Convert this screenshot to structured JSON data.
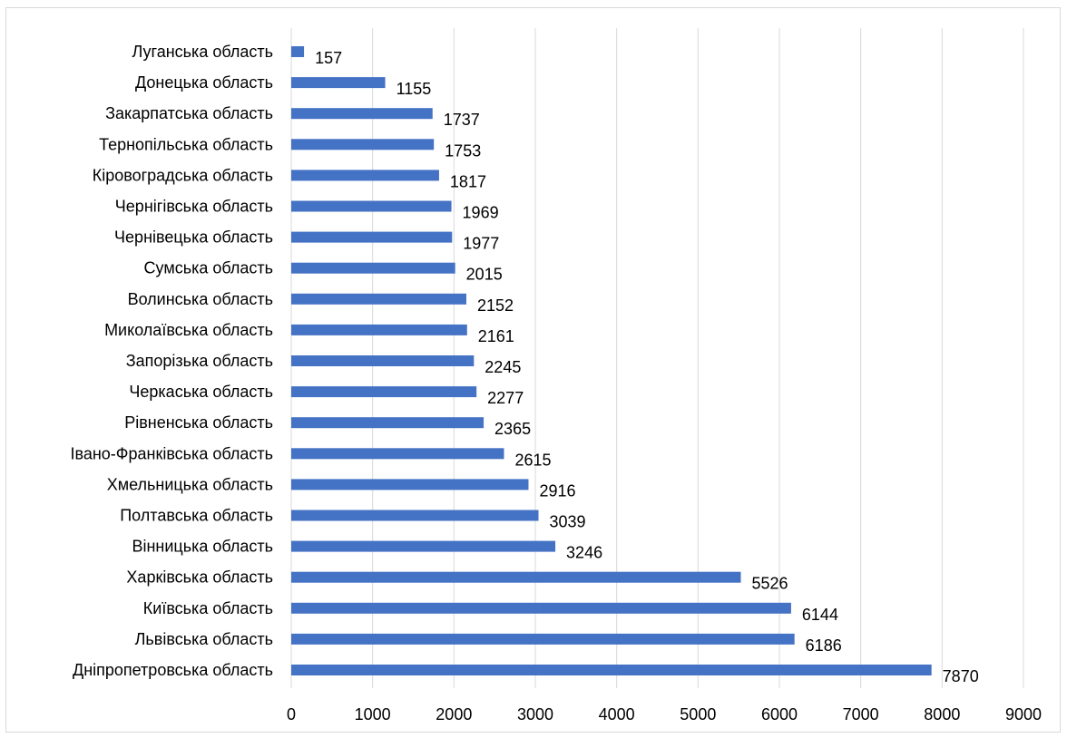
{
  "chart_data": {
    "type": "bar",
    "orientation": "horizontal",
    "title": "",
    "xlabel": "",
    "ylabel": "",
    "xlim": [
      0,
      9000
    ],
    "x_ticks": [
      "0",
      "1000",
      "2000",
      "3000",
      "4000",
      "5000",
      "6000",
      "7000",
      "8000",
      "9000"
    ],
    "grid": "vertical",
    "legend": "none",
    "bar_color": "#4472c4",
    "categories": [
      "Луганська область",
      "Донецька область",
      "Закарпатська область",
      "Тернопільська область",
      "Кіровоградська область",
      "Чернігівська область",
      "Чернівецька область",
      "Сумська область",
      "Волинська область",
      "Миколаївська область",
      "Запорізька область",
      "Черкаська область",
      "Рівненська область",
      "Івано-Франківська область",
      "Хмельницька область",
      "Полтавська область",
      "Вінницька область",
      "Харківська область",
      "Київська область",
      "Львівська область",
      "Дніпропетровська область"
    ],
    "values": [
      157,
      1155,
      1737,
      1753,
      1817,
      1969,
      1977,
      2015,
      2152,
      2161,
      2245,
      2277,
      2365,
      2615,
      2916,
      3039,
      3246,
      5526,
      6144,
      6186,
      7870
    ],
    "data_labels": [
      "157",
      "1155",
      "1737",
      "1753",
      "1817",
      "1969",
      "1977",
      "2015",
      "2152",
      "2161",
      "2245",
      "2277",
      "2365",
      "2615",
      "2916",
      "3039",
      "3246",
      "5526",
      "6144",
      "6186",
      "7870"
    ]
  }
}
